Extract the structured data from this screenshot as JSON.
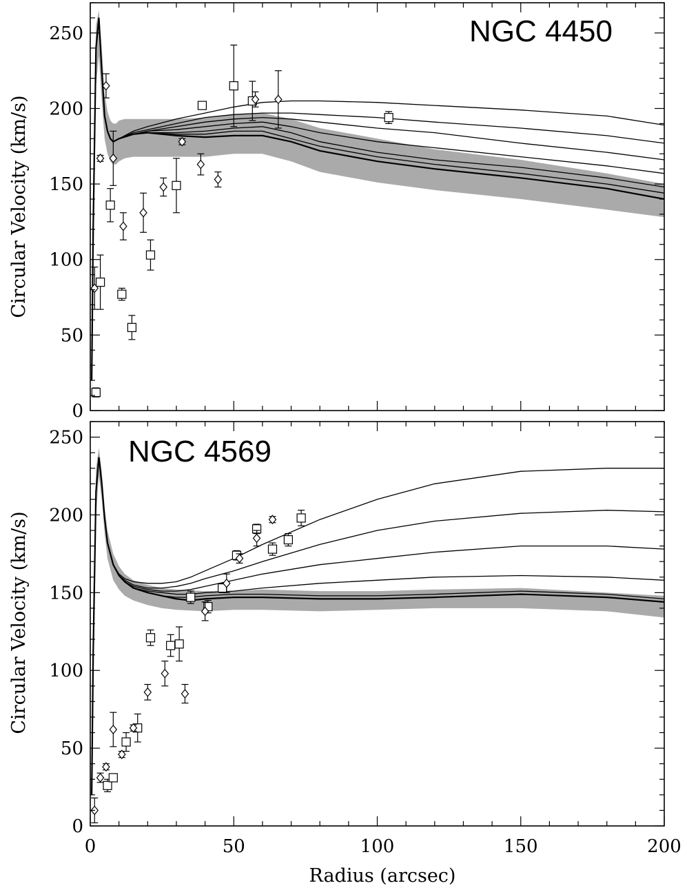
{
  "figure": {
    "ylabel": "Circular Velocity (km/s)",
    "xlabel": "Radius (arcsec)"
  },
  "chart_data": [
    {
      "type": "scatter",
      "title": "NGC 4450",
      "xlim": [
        0,
        200
      ],
      "ylim": [
        0,
        270
      ],
      "x_ticks": [
        0,
        50,
        100,
        150,
        200
      ],
      "y_ticks": [
        0,
        50,
        100,
        150,
        200,
        250
      ],
      "x_tick_labels": [
        "",
        "",
        "",
        "",
        ""
      ],
      "y_tick_labels": [
        "0",
        "50",
        "100",
        "150",
        "200",
        "250"
      ],
      "band": {
        "x": [
          0.5,
          1,
          2,
          3,
          4,
          5,
          6,
          7,
          8,
          9,
          10,
          12,
          15,
          20,
          30,
          40,
          50,
          60,
          70,
          80,
          100,
          120,
          150,
          180,
          200
        ],
        "upper": [
          40,
          150,
          255,
          265,
          240,
          210,
          198,
          192,
          190,
          190,
          192,
          193,
          193,
          193,
          193,
          194,
          196,
          197,
          193,
          187,
          180,
          173,
          166,
          157,
          150
        ],
        "lower": [
          5,
          80,
          215,
          235,
          205,
          180,
          170,
          165,
          163,
          163,
          165,
          167,
          168,
          168,
          168,
          168,
          170,
          170,
          165,
          158,
          151,
          146,
          140,
          133,
          128
        ]
      },
      "models": [
        {
          "x": [
            0.5,
            1,
            2,
            3,
            4,
            5,
            6,
            7,
            8,
            10,
            15,
            20,
            30,
            40,
            50,
            60,
            70,
            80,
            100,
            120,
            150,
            180,
            200
          ],
          "y": [
            20,
            120,
            240,
            260,
            225,
            195,
            185,
            180,
            178,
            180,
            183,
            184,
            182,
            181,
            182,
            182,
            178,
            172,
            165,
            160,
            154,
            147,
            140
          ]
        },
        {
          "x": [
            0.5,
            1,
            2,
            3,
            4,
            5,
            6,
            7,
            8,
            10,
            15,
            20,
            30,
            40,
            50,
            60,
            70,
            80,
            100,
            120,
            150,
            180,
            200
          ],
          "y": [
            20,
            120,
            240,
            260,
            225,
            195,
            185,
            180,
            178,
            180,
            183,
            184,
            183,
            183,
            185,
            185,
            180,
            175,
            168,
            163,
            157,
            150,
            144
          ]
        },
        {
          "x": [
            0.5,
            1,
            2,
            3,
            4,
            5,
            6,
            7,
            8,
            10,
            15,
            20,
            30,
            40,
            50,
            60,
            70,
            80,
            100,
            120,
            150,
            180,
            200
          ],
          "y": [
            20,
            120,
            240,
            260,
            225,
            195,
            185,
            180,
            178,
            180,
            183,
            184,
            184,
            185,
            187,
            188,
            184,
            178,
            171,
            166,
            161,
            154,
            148
          ]
        },
        {
          "x": [
            0.5,
            1,
            2,
            3,
            4,
            5,
            6,
            7,
            8,
            10,
            15,
            20,
            30,
            40,
            50,
            60,
            70,
            80,
            100,
            120,
            150,
            180,
            200
          ],
          "y": [
            20,
            120,
            240,
            260,
            225,
            195,
            185,
            180,
            178,
            180,
            183,
            185,
            186,
            188,
            190,
            191,
            188,
            184,
            178,
            174,
            168,
            162,
            157
          ]
        },
        {
          "x": [
            0.5,
            1,
            2,
            3,
            4,
            5,
            6,
            7,
            8,
            10,
            15,
            20,
            30,
            40,
            50,
            60,
            70,
            80,
            100,
            120,
            150,
            180,
            200
          ],
          "y": [
            20,
            120,
            240,
            260,
            225,
            195,
            185,
            180,
            178,
            180,
            183,
            185,
            188,
            191,
            193,
            194,
            193,
            191,
            187,
            184,
            177,
            171,
            166
          ]
        },
        {
          "x": [
            0.5,
            1,
            2,
            3,
            4,
            5,
            6,
            7,
            8,
            10,
            15,
            20,
            30,
            40,
            50,
            60,
            70,
            80,
            100,
            120,
            150,
            180,
            200
          ],
          "y": [
            20,
            120,
            240,
            260,
            225,
            195,
            185,
            180,
            178,
            180,
            184,
            186,
            190,
            194,
            196,
            197,
            197,
            196,
            194,
            191,
            187,
            182,
            177
          ]
        },
        {
          "x": [
            0.5,
            1,
            2,
            3,
            4,
            5,
            6,
            7,
            8,
            10,
            15,
            20,
            30,
            40,
            50,
            60,
            70,
            80,
            100,
            120,
            150,
            180,
            200
          ],
          "y": [
            20,
            120,
            240,
            260,
            225,
            195,
            185,
            180,
            178,
            180,
            185,
            188,
            193,
            197,
            201,
            204,
            205,
            205,
            204,
            202,
            199,
            195,
            189
          ]
        }
      ],
      "squares": [
        {
          "x": 2.0,
          "y": 12,
          "err": 3
        },
        {
          "x": 3.5,
          "y": 85,
          "err": 18
        },
        {
          "x": 7.0,
          "y": 136,
          "err": 11
        },
        {
          "x": 11.0,
          "y": 77,
          "err": 4
        },
        {
          "x": 14.5,
          "y": 55,
          "err": 8
        },
        {
          "x": 21.0,
          "y": 103,
          "err": 10
        },
        {
          "x": 30.0,
          "y": 149,
          "err": 18
        },
        {
          "x": 39.0,
          "y": 202,
          "err": 2
        },
        {
          "x": 50.0,
          "y": 215,
          "err": 27
        },
        {
          "x": 56.5,
          "y": 205,
          "err": 13
        },
        {
          "x": 104.0,
          "y": 194,
          "err": 4
        }
      ],
      "diamonds": [
        {
          "x": 1.5,
          "y": 81,
          "err": 14
        },
        {
          "x": 3.5,
          "y": 167,
          "err": 2
        },
        {
          "x": 5.5,
          "y": 215,
          "err": 8
        },
        {
          "x": 8.0,
          "y": 167,
          "err": 18
        },
        {
          "x": 11.5,
          "y": 122,
          "err": 9
        },
        {
          "x": 18.5,
          "y": 131,
          "err": 13
        },
        {
          "x": 25.5,
          "y": 148,
          "err": 6
        },
        {
          "x": 32.0,
          "y": 178,
          "err": 2
        },
        {
          "x": 38.5,
          "y": 163,
          "err": 7
        },
        {
          "x": 44.5,
          "y": 153,
          "err": 5
        },
        {
          "x": 57.5,
          "y": 206,
          "err": 5
        },
        {
          "x": 65.5,
          "y": 206,
          "err": 19
        }
      ]
    },
    {
      "type": "scatter",
      "title": "NGC 4569",
      "xlim": [
        0,
        200
      ],
      "ylim": [
        0,
        260
      ],
      "x_ticks": [
        0,
        50,
        100,
        150,
        200
      ],
      "y_ticks": [
        0,
        50,
        100,
        150,
        200,
        250
      ],
      "x_tick_labels": [
        "0",
        "50",
        "100",
        "150",
        "200"
      ],
      "y_tick_labels": [
        "0",
        "50",
        "100",
        "150",
        "200",
        "250"
      ],
      "band": {
        "x": [
          0.5,
          1,
          2,
          3,
          4,
          5,
          6,
          8,
          10,
          12,
          15,
          20,
          25,
          30,
          40,
          50,
          60,
          80,
          100,
          120,
          150,
          180,
          200
        ],
        "upper": [
          40,
          140,
          230,
          243,
          228,
          205,
          190,
          175,
          167,
          162,
          158,
          155,
          153,
          152,
          151,
          151,
          152,
          151,
          151,
          152,
          153,
          150,
          148
        ],
        "lower": [
          5,
          80,
          200,
          225,
          210,
          188,
          172,
          158,
          152,
          148,
          145,
          142,
          140,
          139,
          138,
          139,
          139,
          138,
          139,
          140,
          140,
          138,
          134
        ]
      },
      "models": [
        {
          "x": [
            0.5,
            1,
            2,
            3,
            4,
            5,
            6,
            8,
            10,
            12,
            15,
            20,
            25,
            30,
            35,
            40,
            50,
            60,
            80,
            100,
            120,
            150,
            180,
            200
          ],
          "y": [
            20,
            110,
            215,
            237,
            220,
            198,
            182,
            168,
            161,
            157,
            153,
            150,
            148,
            146,
            145,
            146,
            147,
            147,
            146,
            146,
            147,
            149,
            147,
            144
          ]
        },
        {
          "x": [
            0.5,
            1,
            2,
            3,
            4,
            5,
            6,
            8,
            10,
            12,
            15,
            20,
            25,
            30,
            35,
            40,
            50,
            60,
            80,
            100,
            120,
            150,
            180,
            200
          ],
          "y": [
            20,
            110,
            215,
            237,
            220,
            198,
            182,
            168,
            161,
            157,
            153,
            150,
            148,
            147,
            147,
            148,
            149,
            149,
            148,
            148,
            149,
            151,
            149,
            146
          ]
        },
        {
          "x": [
            0.5,
            1,
            2,
            3,
            4,
            5,
            6,
            8,
            10,
            12,
            15,
            20,
            25,
            30,
            35,
            40,
            50,
            60,
            80,
            100,
            120,
            150,
            180,
            200
          ],
          "y": [
            20,
            110,
            215,
            237,
            220,
            198,
            182,
            168,
            161,
            157,
            153,
            151,
            150,
            149,
            149,
            150,
            151,
            153,
            156,
            158,
            160,
            161,
            160,
            158
          ]
        },
        {
          "x": [
            0.5,
            1,
            2,
            3,
            4,
            5,
            6,
            8,
            10,
            12,
            15,
            20,
            25,
            30,
            35,
            40,
            50,
            60,
            80,
            100,
            120,
            150,
            180,
            200
          ],
          "y": [
            20,
            110,
            215,
            237,
            220,
            198,
            182,
            168,
            161,
            157,
            154,
            152,
            151,
            151,
            152,
            154,
            158,
            162,
            168,
            172,
            176,
            180,
            180,
            178
          ]
        },
        {
          "x": [
            0.5,
            1,
            2,
            3,
            4,
            5,
            6,
            8,
            10,
            12,
            15,
            20,
            25,
            30,
            35,
            40,
            50,
            60,
            80,
            100,
            120,
            150,
            180,
            200
          ],
          "y": [
            20,
            110,
            215,
            237,
            220,
            198,
            182,
            168,
            161,
            158,
            155,
            153,
            153,
            154,
            156,
            159,
            164,
            170,
            181,
            190,
            196,
            201,
            203,
            202
          ]
        },
        {
          "x": [
            0.5,
            1,
            2,
            3,
            4,
            5,
            6,
            8,
            10,
            12,
            15,
            20,
            25,
            30,
            35,
            40,
            50,
            60,
            80,
            100,
            120,
            150,
            180,
            200
          ],
          "y": [
            20,
            110,
            215,
            237,
            220,
            198,
            182,
            168,
            162,
            159,
            157,
            156,
            156,
            157,
            160,
            164,
            172,
            181,
            197,
            210,
            220,
            228,
            230,
            230
          ]
        }
      ],
      "squares": [
        {
          "x": 6.0,
          "y": 26,
          "err": 4
        },
        {
          "x": 8.0,
          "y": 31,
          "err": 2
        },
        {
          "x": 12.5,
          "y": 54,
          "err": 6
        },
        {
          "x": 16.5,
          "y": 63,
          "err": 9
        },
        {
          "x": 21.0,
          "y": 121,
          "err": 5
        },
        {
          "x": 28.0,
          "y": 116,
          "err": 7
        },
        {
          "x": 31.0,
          "y": 117,
          "err": 11
        },
        {
          "x": 35.0,
          "y": 147,
          "err": 4
        },
        {
          "x": 41.0,
          "y": 141,
          "err": 4
        },
        {
          "x": 46.0,
          "y": 153,
          "err": 3
        },
        {
          "x": 51.0,
          "y": 174,
          "err": 3
        },
        {
          "x": 58.0,
          "y": 191,
          "err": 3
        },
        {
          "x": 63.5,
          "y": 178,
          "err": 4
        },
        {
          "x": 69.0,
          "y": 184,
          "err": 4
        },
        {
          "x": 73.5,
          "y": 198,
          "err": 5
        }
      ],
      "diamonds": [
        {
          "x": 1.5,
          "y": 10,
          "err": 8
        },
        {
          "x": 3.5,
          "y": 31,
          "err": 3
        },
        {
          "x": 5.5,
          "y": 38,
          "err": 2
        },
        {
          "x": 8.0,
          "y": 62,
          "err": 11
        },
        {
          "x": 11.0,
          "y": 46,
          "err": 2
        },
        {
          "x": 15.0,
          "y": 63,
          "err": 2
        },
        {
          "x": 20.0,
          "y": 86,
          "err": 5
        },
        {
          "x": 26.0,
          "y": 98,
          "err": 8
        },
        {
          "x": 33.0,
          "y": 85,
          "err": 6
        },
        {
          "x": 40.0,
          "y": 138,
          "err": 6
        },
        {
          "x": 47.5,
          "y": 156,
          "err": 6
        },
        {
          "x": 52.0,
          "y": 172,
          "err": 3
        },
        {
          "x": 58.0,
          "y": 185,
          "err": 5
        },
        {
          "x": 63.5,
          "y": 197,
          "err": 2
        }
      ]
    }
  ]
}
